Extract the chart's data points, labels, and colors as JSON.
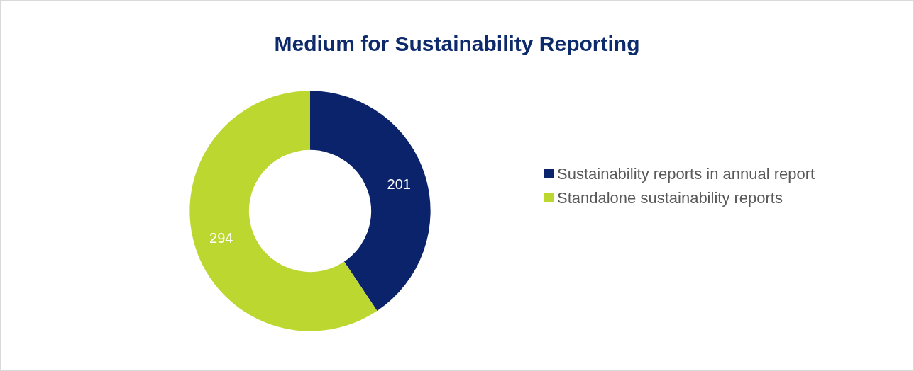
{
  "chart_data": {
    "type": "donut",
    "title": "Medium for Sustainability Reporting",
    "categories": [
      "Sustainability reports in annual report",
      "Standalone sustainability reports"
    ],
    "values": [
      201,
      294
    ],
    "colors": [
      "#0b236b",
      "#bdd731"
    ],
    "data_labels": true,
    "legend": "right"
  }
}
